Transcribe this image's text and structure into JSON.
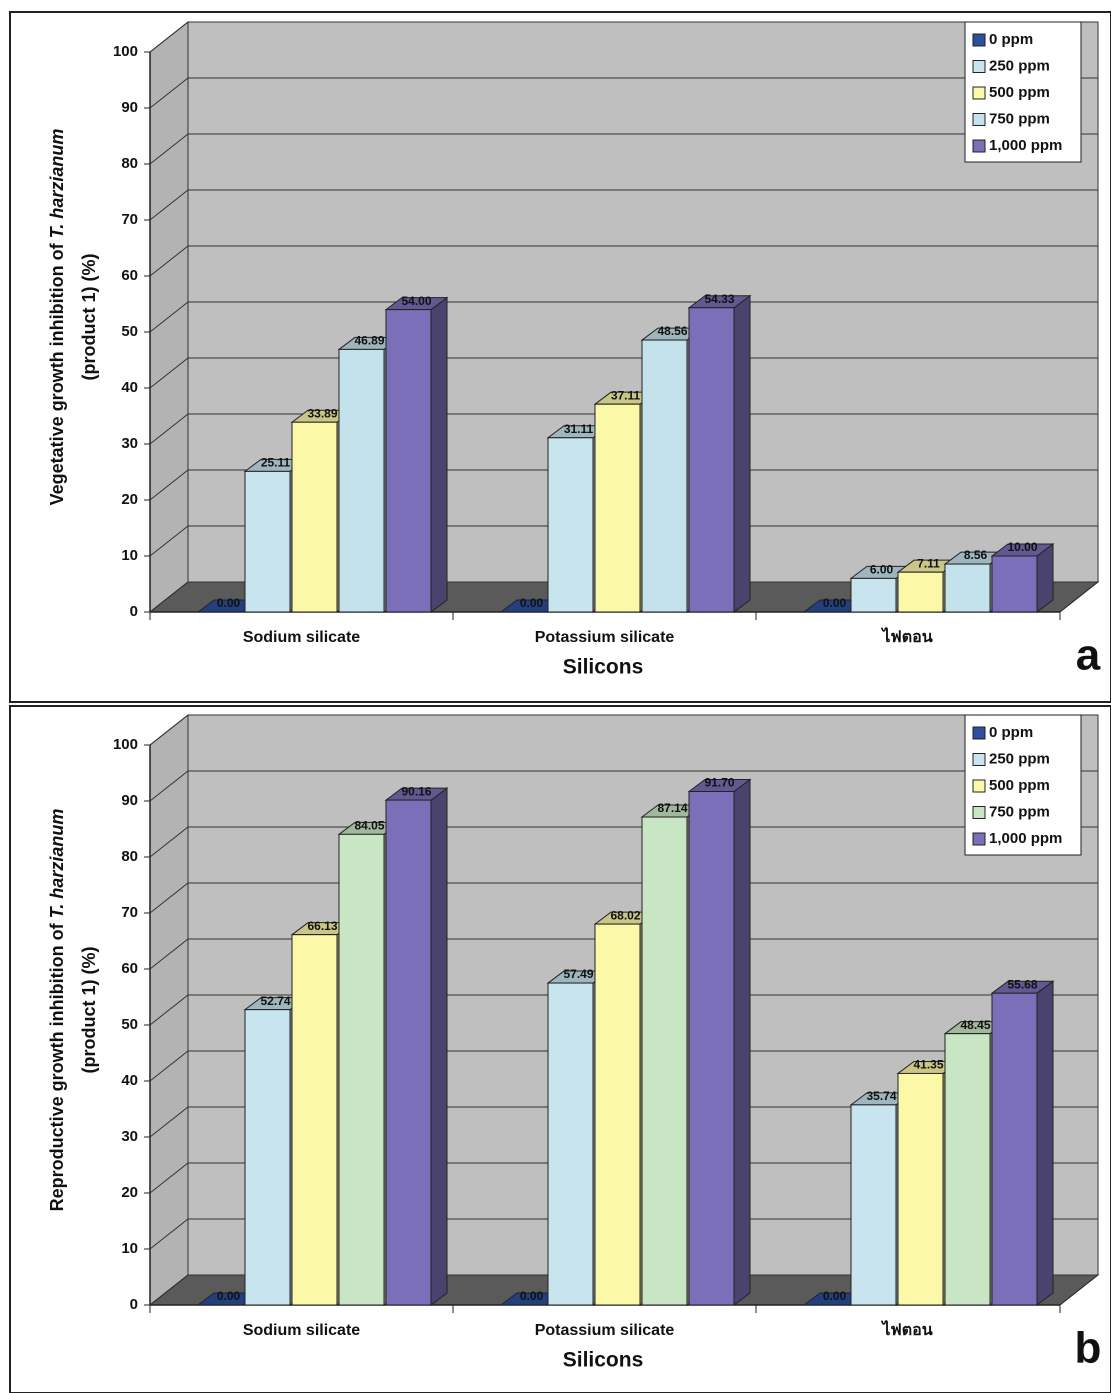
{
  "chart_data": [
    {
      "type": "bar",
      "panel_label": "a",
      "ylabel_parts": [
        "Vegetative growth inhibition of",
        "T. harzianum",
        "(product 1) (%)"
      ],
      "xlabel": "Silicons",
      "categories": [
        "Sodium silicate",
        "Potassium silicate",
        "ไฟตอน"
      ],
      "series": [
        {
          "name": "0 ppm",
          "color": "#2c4f9e",
          "values": [
            0,
            0,
            0
          ],
          "value_labels": [
            "0.00",
            "0.00",
            "0.00"
          ]
        },
        {
          "name": "250 ppm",
          "color": "#c8e4ee",
          "values": [
            25.11,
            31.11,
            6
          ],
          "value_labels": [
            "25.11",
            "31.11",
            "6.00"
          ]
        },
        {
          "name": "500 ppm",
          "color": "#fbf8a8",
          "values": [
            33.89,
            37.11,
            7.11
          ],
          "value_labels": [
            "33.89",
            "37.11",
            "7.11"
          ]
        },
        {
          "name": "750 ppm",
          "color": "#c4e2ec",
          "values": [
            46.89,
            48.56,
            8.56
          ],
          "value_labels": [
            "46.89",
            "48.56",
            "8.56"
          ]
        },
        {
          "name": "1,000 ppm",
          "color": "#7a6fb8",
          "values": [
            54,
            54.33,
            10
          ],
          "value_labels": [
            "54.00",
            "54.33",
            "10.00"
          ]
        }
      ],
      "ylim": [
        0,
        100
      ],
      "yticks": [
        0,
        10,
        20,
        30,
        40,
        50,
        60,
        70,
        80,
        90,
        100
      ],
      "grid": true,
      "legend": "top-right"
    },
    {
      "type": "bar",
      "panel_label": "b",
      "ylabel_parts": [
        "Reproductive growth inhibition of",
        "T. harzianum",
        "(product 1) (%)"
      ],
      "xlabel": "Silicons",
      "categories": [
        "Sodium silicate",
        "Potassium silicate",
        "ไฟตอน"
      ],
      "series": [
        {
          "name": "0 ppm",
          "color": "#2c4f9e",
          "values": [
            0,
            0,
            0
          ],
          "value_labels": [
            "0.00",
            "0.00",
            "0.00"
          ]
        },
        {
          "name": "250 ppm",
          "color": "#c8e4ee",
          "values": [
            52.74,
            57.49,
            35.74
          ],
          "value_labels": [
            "52.74",
            "57.49",
            "35.74"
          ]
        },
        {
          "name": "500 ppm",
          "color": "#fbf8a8",
          "values": [
            66.13,
            68.02,
            41.35
          ],
          "value_labels": [
            "66.13",
            "68.02",
            "41.35"
          ]
        },
        {
          "name": "750 ppm",
          "color": "#c9e6c4",
          "values": [
            84.05,
            87.14,
            48.45
          ],
          "value_labels": [
            "84.05",
            "87.14",
            "48.45"
          ]
        },
        {
          "name": "1,000 ppm",
          "color": "#7a6fb8",
          "values": [
            90.16,
            91.7,
            55.68
          ],
          "value_labels": [
            "90.16",
            "91.70",
            "55.68"
          ]
        }
      ],
      "ylim": [
        0,
        100
      ],
      "yticks": [
        0,
        10,
        20,
        30,
        40,
        50,
        60,
        70,
        80,
        90,
        100
      ],
      "grid": true,
      "legend": "top-right"
    }
  ]
}
